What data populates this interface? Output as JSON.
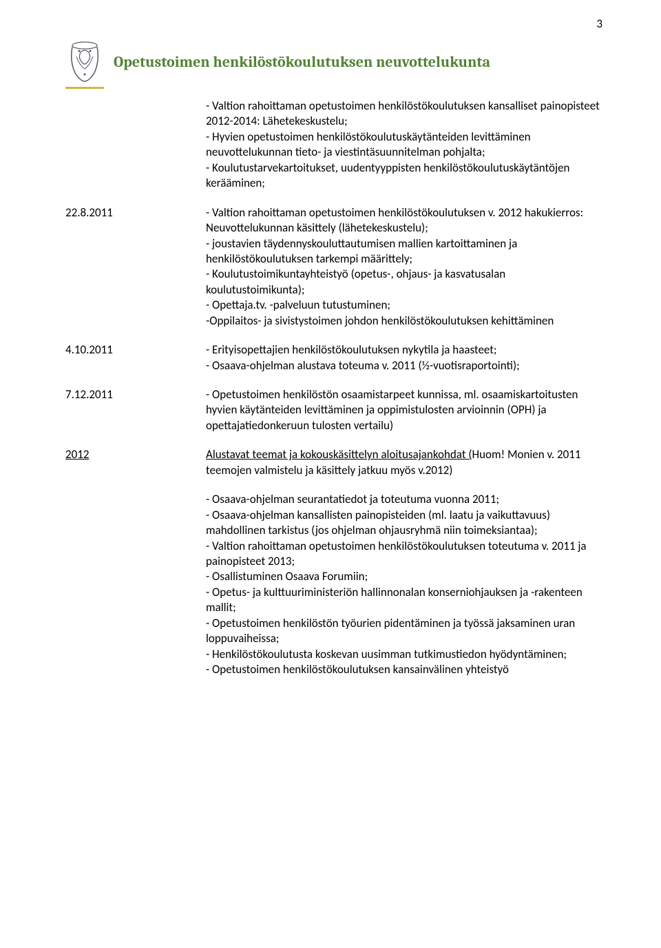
{
  "page_number": "3",
  "header_title": "Opetustoimen henkilöstökoulutuksen neuvottelukunta",
  "intro": "- Valtion rahoittaman opetustoimen henkilöstökoulutuksen kansalliset painopisteet 2012-2014: Lähetekeskustelu;\n- Hyvien opetustoimen henkilöstökoulutuskäytänteiden levittäminen neuvottelukunnan tieto- ja viestintäsuunnitelman pohjalta;\n- Koulutustarvekartoitukset, uudentyyppisten henkilöstökoulutuskäytäntöjen kerääminen;",
  "entries": [
    {
      "date": "22.8.2011",
      "body": "- Valtion rahoittaman opetustoimen henkilöstökoulutuksen v. 2012 hakukierros: Neuvottelukunnan käsittely (lähetekeskustelu);\n- joustavien täydennyskouluttautumisen mallien kartoittaminen ja henkilöstökoulutuksen tarkempi määrittely;\n- Koulutustoimikuntayhteistyö (opetus-, ohjaus- ja kasvatusalan koulutustoimikunta);\n- Opettaja.tv. -palveluun tutustuminen;\n-Oppilaitos- ja sivistystoimen johdon henkilöstökoulutuksen kehittäminen"
    },
    {
      "date": "4.10.2011",
      "body": "- Erityisopettajien henkilöstökoulutuksen nykytila ja haasteet;\n- Osaava-ohjelman alustava toteuma v. 2011 (½-vuotisraportointi);"
    },
    {
      "date": "7.12.2011",
      "body": "- Opetustoimen henkilöstön osaamistarpeet kunnissa, ml. osaamiskartoitusten hyvien käytänteiden levittäminen ja oppimistulosten arvioinnin (OPH) ja opettajatiedonkeruun tulosten vertailu)"
    }
  ],
  "year_row": {
    "label": "2012",
    "underlined": "Alustavat teemat ja kokouskäsittelyn aloitusajankohdat (",
    "rest": "Huom! Monien v. 2011 teemojen valmistelu ja käsittely jatkuu myös v.2012)"
  },
  "bullets": "- Osaava-ohjelman seurantatiedot ja toteutuma vuonna 2011;\n- Osaava-ohjelman kansallisten painopisteiden (ml. laatu ja vaikuttavuus) mahdollinen tarkistus (jos ohjelman ohjausryhmä niin toimeksiantaa);\n- Valtion rahoittaman opetustoimen henkilöstökoulutuksen toteutuma v. 2011 ja painopisteet 2013;\n- Osallistuminen Osaava Forumiin;\n- Opetus- ja kulttuuriministeriön hallinnonalan konserniohjauksen ja -rakenteen mallit;\n- Opetustoimen henkilöstön työurien pidentäminen ja työssä jaksaminen uran loppuvaiheissa;\n- Henkilöstökoulutusta koskevan uusimman tutkimustiedon hyödyntäminen;\n- Opetustoimen henkilöstökoulutuksen kansainvälinen yhteistyö"
}
